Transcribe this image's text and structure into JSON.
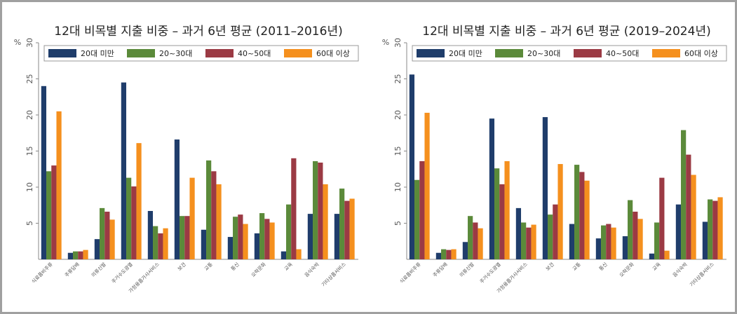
{
  "chart_data": [
    {
      "type": "bar",
      "title": "12대 비목별 지출 비중 – 과거 6년 평균 (2011–2016년)",
      "y_label": "%",
      "categories": [
        "식료품비주류",
        "주류담배",
        "의류신발",
        "주거수도광열",
        "가정용품가사서비스",
        "보건",
        "교통",
        "통신",
        "오락문화",
        "교육",
        "음식숙박",
        "기타상품서비스"
      ],
      "series": [
        {
          "name": "20대 미만",
          "color": "#1f3d6b",
          "values": [
            24,
            0.9,
            2.8,
            24.5,
            6.7,
            16.6,
            4.1,
            3.1,
            3.6,
            1.1,
            6.3,
            6.3
          ]
        },
        {
          "name": "20~30대",
          "color": "#5b8a3a",
          "values": [
            12.2,
            1.1,
            7.1,
            11.3,
            4.6,
            6,
            13.7,
            5.9,
            6.4,
            7.6,
            13.6,
            9.8
          ]
        },
        {
          "name": "40~50대",
          "color": "#9b3a44",
          "values": [
            13,
            1.1,
            6.6,
            10.1,
            3.6,
            6,
            12.2,
            6.2,
            5.6,
            14,
            13.4,
            8.1
          ]
        },
        {
          "name": "60대 이상",
          "color": "#f5901e",
          "values": [
            20.5,
            1.3,
            5.5,
            16.1,
            4.3,
            11.3,
            10.4,
            4.9,
            5.1,
            1.4,
            10.4,
            8.4
          ]
        }
      ],
      "ylim": [
        0,
        30
      ],
      "yticks": [
        5,
        10,
        15,
        20,
        25,
        30
      ]
    },
    {
      "type": "bar",
      "title": "12대 비목별 지출 비중 – 과거 6년 평균 (2019–2024년)",
      "y_label": "%",
      "categories": [
        "식료품비주류",
        "주류담배",
        "의류신발",
        "주거수도광열",
        "가정용품가사서비스",
        "보건",
        "교통",
        "통신",
        "오락문화",
        "교육",
        "음식숙박",
        "기타상품서비스"
      ],
      "series": [
        {
          "name": "20대 미만",
          "color": "#1f3d6b",
          "values": [
            25.6,
            0.9,
            2.4,
            19.5,
            7.1,
            19.7,
            4.9,
            2.9,
            3.2,
            0.8,
            7.6,
            5.2
          ]
        },
        {
          "name": "20~30대",
          "color": "#5b8a3a",
          "values": [
            11,
            1.4,
            6,
            12.6,
            5.1,
            6.2,
            13.1,
            4.7,
            8.2,
            5.1,
            17.9,
            8.3
          ]
        },
        {
          "name": "40~50대",
          "color": "#9b3a44",
          "values": [
            13.6,
            1.3,
            5.1,
            10.4,
            4.4,
            7.6,
            12.1,
            4.9,
            6.6,
            11.3,
            14.5,
            8.1
          ]
        },
        {
          "name": "60대 이상",
          "color": "#f5901e",
          "values": [
            20.3,
            1.4,
            4.3,
            13.6,
            4.8,
            13.2,
            10.9,
            4.4,
            5.6,
            1.2,
            11.7,
            8.6
          ]
        }
      ],
      "ylim": [
        0,
        30
      ],
      "yticks": [
        5,
        10,
        15,
        20,
        25,
        30
      ]
    }
  ]
}
